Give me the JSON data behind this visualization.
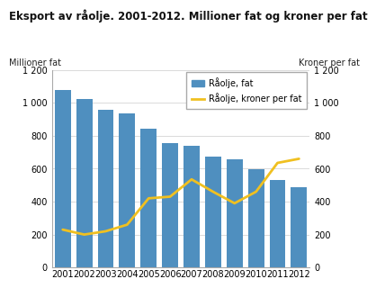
{
  "title": "Eksport av råolje. 2001-2012. Millioner fat og kroner per fat",
  "years": [
    2001,
    2002,
    2003,
    2004,
    2005,
    2006,
    2007,
    2008,
    2009,
    2010,
    2011,
    2012
  ],
  "bar_values": [
    1075,
    1025,
    960,
    935,
    845,
    755,
    740,
    675,
    655,
    595,
    530,
    490
  ],
  "line_values": [
    230,
    200,
    220,
    260,
    420,
    430,
    535,
    460,
    390,
    460,
    635,
    660
  ],
  "bar_color": "#4f8fbf",
  "line_color": "#f0c020",
  "ylabel_left": "Millioner fat",
  "ylabel_right": "Kroner per fat",
  "ylim_left": [
    0,
    1200
  ],
  "ylim_right": [
    0,
    1200
  ],
  "yticks": [
    0,
    200,
    400,
    600,
    800,
    1000,
    1200
  ],
  "ytick_labels": [
    "0",
    "200",
    "400",
    "600",
    "800",
    "1 000",
    "1 200"
  ],
  "legend_bar": "Råolje, fat",
  "legend_line": "Råolje, kroner per fat",
  "bg_color": "#ffffff",
  "grid_color": "#cccccc",
  "title_fontsize": 8.5,
  "label_fontsize": 7.0,
  "tick_fontsize": 7.0
}
